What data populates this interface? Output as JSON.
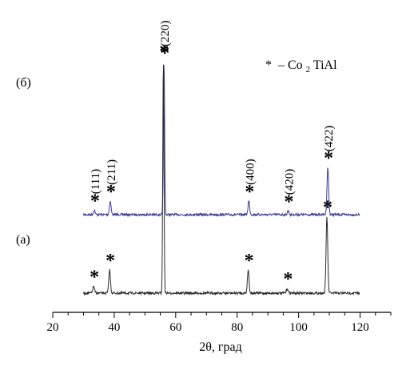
{
  "chart_data": {
    "type": "line",
    "xlabel": "2θ, град",
    "ylabel": "",
    "xlim": [
      20,
      130
    ],
    "xticks": [
      20,
      40,
      60,
      80,
      100,
      120
    ],
    "grid": false,
    "legend": {
      "marker": "*",
      "text": "– Co",
      "sub": "2",
      "text2": "TiAl"
    },
    "series": [
      {
        "name": "(б)",
        "color": "#3b3b8f",
        "baseline": 0.0,
        "peaks": [
          {
            "x": 33.5,
            "y": 0.03
          },
          {
            "x": 38.7,
            "y": 0.09
          },
          {
            "x": 56.2,
            "y": 1.0
          },
          {
            "x": 83.8,
            "y": 0.09
          },
          {
            "x": 96.6,
            "y": 0.025
          },
          {
            "x": 109.5,
            "y": 0.31
          }
        ],
        "markers": [
          33.5,
          38.7,
          56.2,
          83.8,
          96.6,
          109.5
        ],
        "hkl": [
          {
            "label": "(111)",
            "x": 33.5
          },
          {
            "label": "(211)",
            "x": 38.7
          },
          {
            "label": "(220)",
            "x": 56.2
          },
          {
            "label": "(400)",
            "x": 83.8
          },
          {
            "label": "(420)",
            "x": 96.6
          },
          {
            "label": "(422)",
            "x": 109.5
          }
        ]
      },
      {
        "name": "(а)",
        "color": "#2a2a2a",
        "baseline": 0.0,
        "peaks": [
          {
            "x": 33.3,
            "y": 0.03
          },
          {
            "x": 38.5,
            "y": 0.1
          },
          {
            "x": 56.0,
            "y": 1.0
          },
          {
            "x": 83.6,
            "y": 0.1
          },
          {
            "x": 96.3,
            "y": 0.02
          },
          {
            "x": 109.2,
            "y": 0.33
          }
        ],
        "markers": [
          33.3,
          38.5,
          56.0,
          83.6,
          96.3,
          109.2
        ],
        "hkl": []
      }
    ]
  }
}
